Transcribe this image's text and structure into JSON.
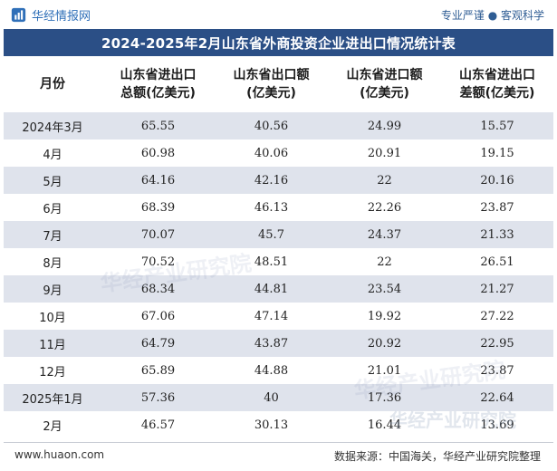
{
  "header": {
    "brand": "华经情报网",
    "slogan": "专业严谨 ● 客观科学"
  },
  "title": "2024-2025年2月山东省外商投资企业进出口情况统计表",
  "table": {
    "columns": [
      "月份",
      "山东省进出口总额(亿美元)",
      "山东省出口额(亿美元)",
      "山东省进口额(亿美元)",
      "山东省进出口差额(亿美元)"
    ],
    "column_lines": [
      [
        "月份"
      ],
      [
        "山东省进出口",
        "总额(亿美元)"
      ],
      [
        "山东省出口额",
        "(亿美元)"
      ],
      [
        "山东省进口额",
        "(亿美元)"
      ],
      [
        "山东省进出口",
        "差额(亿美元)"
      ]
    ],
    "rows": [
      [
        "2024年3月",
        "65.55",
        "40.56",
        "24.99",
        "15.57"
      ],
      [
        "4月",
        "60.98",
        "40.06",
        "20.91",
        "19.15"
      ],
      [
        "5月",
        "64.16",
        "42.16",
        "22",
        "20.16"
      ],
      [
        "6月",
        "68.39",
        "46.13",
        "22.26",
        "23.87"
      ],
      [
        "7月",
        "70.07",
        "45.7",
        "24.37",
        "21.33"
      ],
      [
        "8月",
        "70.52",
        "48.51",
        "22",
        "26.51"
      ],
      [
        "9月",
        "68.34",
        "44.81",
        "23.54",
        "21.27"
      ],
      [
        "10月",
        "67.06",
        "47.14",
        "19.92",
        "27.22"
      ],
      [
        "11月",
        "64.79",
        "43.87",
        "20.92",
        "22.95"
      ],
      [
        "12月",
        "65.89",
        "44.88",
        "21.01",
        "23.87"
      ],
      [
        "2025年1月",
        "57.36",
        "40",
        "17.36",
        "22.64"
      ],
      [
        "2月",
        "46.57",
        "30.13",
        "16.44",
        "13.69"
      ]
    ]
  },
  "watermarks": [
    "华经产业研究院",
    "华经产业研究院",
    "华经产业研究院"
  ],
  "footer": {
    "url": "www.huaon.com",
    "source": "数据来源：中国海关，华经产业研究院整理"
  },
  "colors": {
    "title_bg": "#2b4f86",
    "stripe": "#dfe3ec",
    "brand": "#2f6fb8"
  }
}
